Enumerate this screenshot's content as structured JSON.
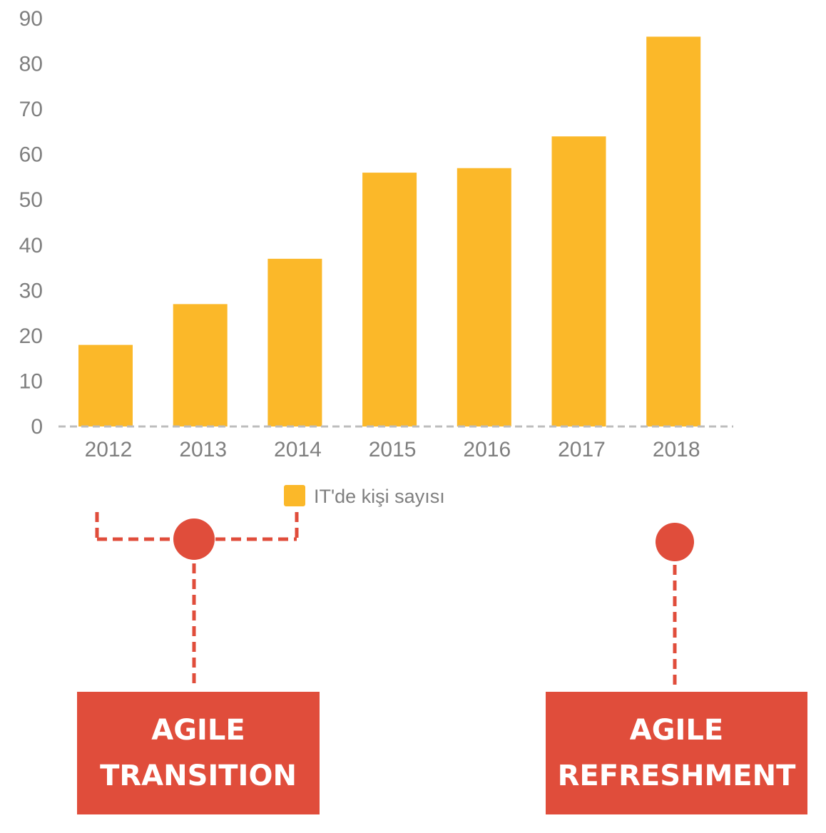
{
  "colors": {
    "bar": "#fbb829",
    "axis_text": "#7f7f7f",
    "baseline": "#bdbdbd",
    "accent": "#e04d3b"
  },
  "chart_data": {
    "type": "bar",
    "categories": [
      "2012",
      "2013",
      "2014",
      "2015",
      "2016",
      "2017",
      "2018"
    ],
    "series": [
      {
        "name": "IT'de kişi sayısı",
        "values": [
          18,
          27,
          37,
          56,
          57,
          64,
          86
        ]
      }
    ],
    "yticks": [
      "0",
      "10",
      "20",
      "30",
      "40",
      "50",
      "60",
      "70",
      "80",
      "90"
    ],
    "ylim": [
      0,
      90
    ],
    "legend_position": "bottom",
    "grid": false
  },
  "annotations": {
    "transition": {
      "line1": "AGILE",
      "line2": "TRANSITION"
    },
    "refreshment": {
      "line1": "AGILE",
      "line2": "REFRESHMENT"
    }
  }
}
